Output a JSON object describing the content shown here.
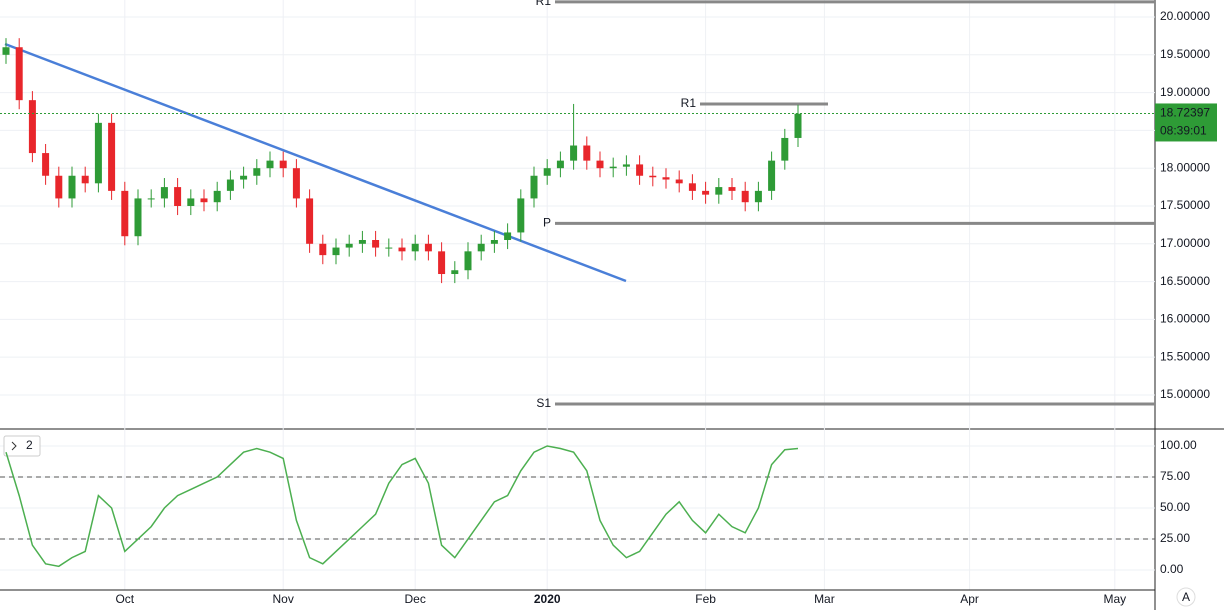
{
  "chart_data": {
    "type": "candlestick",
    "categories": [
      null,
      null,
      null,
      null,
      null,
      null,
      null,
      null,
      null,
      "Oct",
      null,
      null,
      null,
      null,
      null,
      null,
      null,
      null,
      null,
      null,
      null,
      "Nov",
      null,
      null,
      null,
      null,
      null,
      null,
      null,
      null,
      null,
      "Dec",
      null,
      null,
      null,
      null,
      null,
      null,
      null,
      null,
      null,
      "2020",
      null,
      null,
      null,
      null,
      null,
      null,
      null,
      null,
      null,
      null,
      null,
      "Feb",
      null,
      null,
      null,
      null,
      null,
      null,
      null,
      null,
      "Mar",
      null,
      null,
      null,
      null,
      null,
      null,
      null,
      null,
      null,
      null,
      "Apr",
      null,
      null,
      null,
      null,
      null,
      null,
      null,
      null,
      null,
      null,
      "May",
      null,
      null,
      null
    ],
    "open": [
      19.5,
      19.6,
      18.9,
      18.2,
      17.9,
      17.6,
      17.9,
      17.8,
      18.6,
      17.7,
      17.1,
      17.6,
      17.6,
      17.75,
      17.5,
      17.6,
      17.55,
      17.7,
      17.85,
      17.9,
      18.0,
      18.1,
      18.0,
      17.6,
      17.0,
      16.85,
      16.95,
      17.0,
      17.05,
      16.95,
      16.95,
      16.9,
      17.0,
      16.9,
      16.6,
      16.65,
      16.9,
      17.0,
      17.05,
      17.15,
      17.6,
      17.9,
      18.0,
      18.1,
      18.3,
      18.1,
      18.0,
      18.02,
      18.05,
      17.9,
      17.88,
      17.85,
      17.8,
      17.7,
      17.65,
      17.75,
      17.7,
      17.55,
      17.7,
      18.1,
      18.4,
      null,
      null,
      null,
      null,
      null,
      null,
      null,
      null,
      null,
      null,
      null,
      null,
      null,
      null,
      null,
      null,
      null,
      null,
      null,
      null,
      null,
      null,
      null,
      null,
      null,
      null,
      null
    ],
    "high": [
      19.72,
      19.72,
      19.02,
      18.32,
      18.02,
      18.02,
      18.02,
      18.72,
      18.72,
      17.82,
      17.72,
      17.72,
      17.87,
      17.87,
      17.72,
      17.72,
      17.82,
      17.97,
      18.02,
      18.12,
      18.22,
      18.22,
      18.12,
      17.72,
      17.12,
      17.07,
      17.12,
      17.17,
      17.17,
      17.07,
      17.07,
      17.12,
      17.12,
      17.02,
      16.77,
      17.02,
      17.12,
      17.17,
      17.27,
      17.72,
      18.02,
      18.12,
      18.22,
      18.85,
      18.42,
      18.22,
      18.14,
      18.17,
      18.17,
      18.02,
      18.0,
      17.97,
      17.92,
      17.82,
      17.87,
      17.87,
      17.82,
      17.82,
      18.22,
      18.52,
      18.84,
      null,
      null,
      null,
      null,
      null,
      null,
      null,
      null,
      null,
      null,
      null,
      null,
      null,
      null,
      null,
      null,
      null,
      null,
      null,
      null,
      null,
      null,
      null,
      null,
      null,
      null,
      null
    ],
    "low": [
      19.38,
      18.78,
      18.08,
      17.78,
      17.48,
      17.48,
      17.68,
      17.68,
      17.58,
      16.98,
      16.98,
      17.48,
      17.48,
      17.38,
      17.38,
      17.43,
      17.43,
      17.58,
      17.73,
      17.78,
      17.88,
      17.88,
      17.48,
      16.88,
      16.73,
      16.73,
      16.83,
      16.88,
      16.83,
      16.83,
      16.78,
      16.78,
      16.78,
      16.48,
      16.48,
      16.53,
      16.78,
      16.88,
      16.93,
      17.03,
      17.48,
      17.78,
      17.88,
      17.98,
      17.98,
      17.88,
      17.88,
      17.9,
      17.78,
      17.76,
      17.73,
      17.68,
      17.58,
      17.53,
      17.53,
      17.58,
      17.43,
      17.43,
      17.58,
      17.98,
      18.28,
      null,
      null,
      null,
      null,
      null,
      null,
      null,
      null,
      null,
      null,
      null,
      null,
      null,
      null,
      null,
      null,
      null,
      null,
      null,
      null,
      null,
      null,
      null,
      null,
      null,
      null,
      null
    ],
    "close": [
      19.6,
      18.9,
      18.2,
      17.9,
      17.6,
      17.9,
      17.8,
      18.6,
      17.7,
      17.1,
      17.6,
      17.6,
      17.75,
      17.5,
      17.6,
      17.55,
      17.7,
      17.85,
      17.9,
      18.0,
      18.1,
      18.0,
      17.6,
      17.0,
      16.85,
      16.95,
      17.0,
      17.05,
      16.95,
      16.95,
      16.9,
      17.0,
      16.9,
      16.6,
      16.65,
      16.9,
      17.0,
      17.05,
      17.15,
      17.6,
      17.9,
      18.0,
      18.1,
      18.3,
      18.1,
      18.0,
      18.02,
      18.05,
      17.9,
      17.88,
      17.85,
      17.8,
      17.7,
      17.65,
      17.75,
      17.7,
      17.55,
      17.7,
      18.1,
      18.4,
      18.72,
      null,
      null,
      null,
      null,
      null,
      null,
      null,
      null,
      null,
      null,
      null,
      null,
      null,
      null,
      null,
      null,
      null,
      null,
      null,
      null,
      null,
      null,
      null,
      null,
      null,
      null,
      null
    ],
    "up_color": "#2e9b36",
    "down_color": "#e8262b",
    "ylim": [
      14.563,
      20.225
    ],
    "yticks": [
      {
        "value": 15,
        "label": "15.00000"
      },
      {
        "value": 15.5,
        "label": "15.50000"
      },
      {
        "value": 16,
        "label": "16.00000"
      },
      {
        "value": 16.5,
        "label": "16.50000"
      },
      {
        "value": 17,
        "label": "17.00000"
      },
      {
        "value": 17.5,
        "label": "17.50000"
      },
      {
        "value": 18,
        "label": "18.00000"
      },
      {
        "value": 18.5,
        "label": "18.50000"
      },
      {
        "value": 19,
        "label": "19.00000"
      },
      {
        "value": 19.5,
        "label": "19.50000"
      },
      {
        "value": 20,
        "label": "20.00000"
      }
    ],
    "last_price": {
      "value": 18.72397,
      "label": "18.72397",
      "countdown": "08:39:01",
      "color": "#2e9b36"
    },
    "pivots": [
      {
        "name": "R1",
        "value": 20.2
      },
      {
        "name": "P",
        "value": 17.27
      },
      {
        "name": "S1",
        "value": 14.88
      },
      {
        "name": "R1",
        "value": 18.85
      }
    ],
    "grid": true,
    "oscillator": {
      "label": "2",
      "ylim": [
        -16.1,
        112.9
      ],
      "yticks": [
        {
          "value": 0,
          "label": "0.00"
        },
        {
          "value": 25,
          "label": "25.00"
        },
        {
          "value": 50,
          "label": "50.00"
        },
        {
          "value": 75,
          "label": "75.00"
        },
        {
          "value": 100,
          "label": "100.00"
        }
      ],
      "levels": [
        75,
        25
      ],
      "series": [
        {
          "color": "#4caf50",
          "values": [
            95,
            60,
            20,
            5,
            3,
            10,
            15,
            60,
            50,
            15,
            25,
            35,
            50,
            60,
            65,
            70,
            75,
            85,
            95,
            98,
            95,
            90,
            40,
            10,
            5,
            15,
            25,
            35,
            45,
            70,
            85,
            90,
            70,
            20,
            10,
            25,
            40,
            55,
            60,
            80,
            95,
            100,
            98,
            95,
            80,
            40,
            20,
            10,
            15,
            30,
            45,
            55,
            40,
            30,
            45,
            35,
            30,
            50,
            85,
            97,
            98,
            null,
            null,
            null,
            null,
            null,
            null,
            null,
            null,
            null,
            null,
            null,
            null,
            null,
            null,
            null,
            null,
            null,
            null,
            null,
            null,
            null,
            null,
            null,
            null,
            null,
            null,
            null
          ]
        }
      ]
    }
  }
}
